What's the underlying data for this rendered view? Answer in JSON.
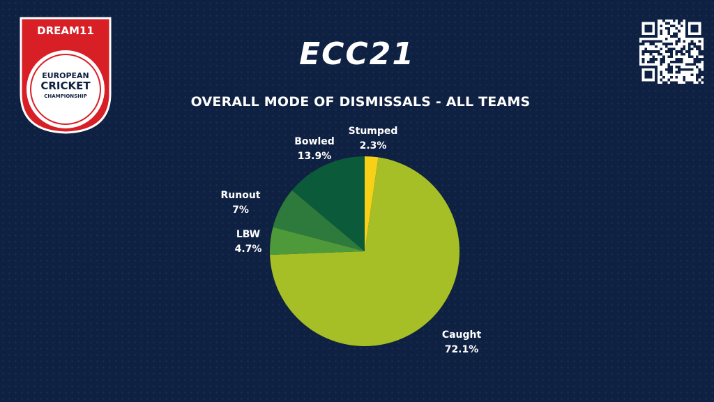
{
  "header": {
    "sponsor": "DREAM11",
    "logo_lines": [
      "EUROPEAN",
      "CRICKET",
      "CHAMPIONSHIP"
    ],
    "brand_title": "ECC21"
  },
  "colors": {
    "background": "#0f2142",
    "logo_red": "#d81f26",
    "text": "#ffffff"
  },
  "chart_data": {
    "type": "pie",
    "title": "OVERALL MODE OF DISMISSALS - ALL TEAMS",
    "start_angle_deg": 0,
    "direction": "clockwise",
    "slices": [
      {
        "label": "Stumped",
        "value": 2.3,
        "display": "2.3%",
        "color": "#f7d117"
      },
      {
        "label": "Caught",
        "value": 72.1,
        "display": "72.1%",
        "color": "#a7bf26"
      },
      {
        "label": "LBW",
        "value": 4.7,
        "display": "4.7%",
        "color": "#4e9a3a"
      },
      {
        "label": "Runout",
        "value": 7.0,
        "display": "7%",
        "color": "#2d7a3c"
      },
      {
        "label": "Bowled",
        "value": 13.9,
        "display": "13.9%",
        "color": "#0b5a3a"
      }
    ]
  },
  "qr_code": {
    "icon": "qr-code-icon"
  }
}
